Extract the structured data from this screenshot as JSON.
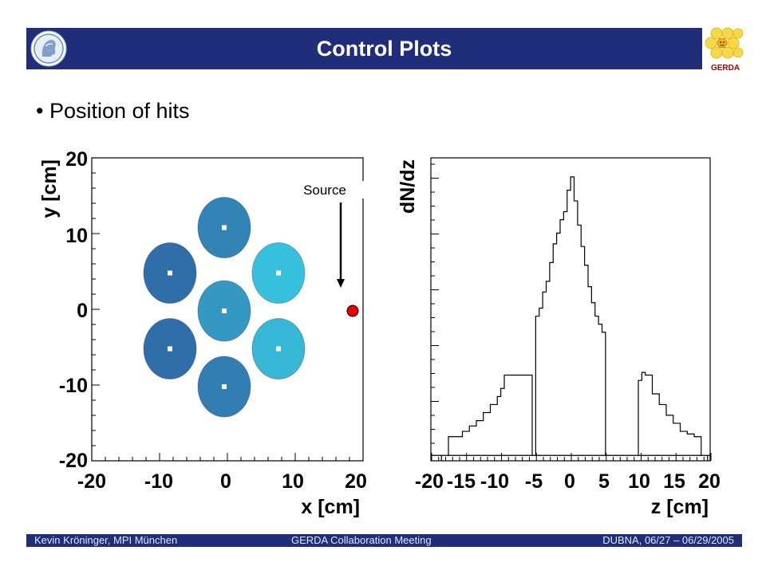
{
  "header": {
    "title": "Control Plots"
  },
  "bullet": {
    "text": "Position of hits"
  },
  "logos": {
    "right_label": "GERDA"
  },
  "footer": {
    "left": "Kevin Kröninger, MPI München",
    "center": "GERDA Collaboration Meeting",
    "right": "DUBNA, 06/27 – 06/29/2005"
  },
  "colors": {
    "bar": "#1f2d7a",
    "detector_dark": "#2f5fa0",
    "detector_light": "#38c6e0",
    "source": "#e60000"
  },
  "chart_data": [
    {
      "type": "heatmap",
      "xlabel": "x [cm]",
      "ylabel": "y [cm]",
      "xlim": [
        -20,
        20
      ],
      "ylim": [
        -20,
        20
      ],
      "xticks": [
        "-20",
        "-10",
        "0",
        "10",
        "20"
      ],
      "yticks": [
        "20",
        "10",
        "0",
        "-10",
        "-20"
      ],
      "annotation": "Source",
      "source_point": {
        "x": 18,
        "y": 0
      },
      "detectors": [
        {
          "x": 0,
          "y": 11,
          "intensity": 0.35
        },
        {
          "x": -8,
          "y": 5,
          "intensity": 0.15
        },
        {
          "x": 8,
          "y": 5,
          "intensity": 0.95
        },
        {
          "x": 0,
          "y": 0,
          "intensity": 0.55
        },
        {
          "x": -8,
          "y": -5,
          "intensity": 0.15
        },
        {
          "x": 8,
          "y": -5,
          "intensity": 0.85
        },
        {
          "x": 0,
          "y": -10,
          "intensity": 0.3
        }
      ]
    },
    {
      "type": "line",
      "xlabel": "z [cm]",
      "ylabel": "dN/dz",
      "xlim": [
        -20,
        20
      ],
      "ylim": [
        0,
        100
      ],
      "xticks": [
        "-20",
        "-15",
        "-10",
        "-5",
        "0",
        "5",
        "10",
        "15",
        "20"
      ],
      "x": [
        -18.6,
        -17.6,
        -16.6,
        -15.6,
        -14.6,
        -13.6,
        -12.6,
        -11.6,
        -10.6,
        -10.1,
        -9.6,
        -5.6,
        -5.1,
        -4.6,
        -4.1,
        -3.6,
        -3.1,
        -2.6,
        -2.1,
        -1.6,
        -1.1,
        -0.6,
        -0.1,
        0.4,
        0.9,
        1.4,
        1.9,
        2.4,
        2.9,
        3.4,
        3.9,
        4.4,
        4.9,
        5.4,
        9.6,
        10.1,
        10.6,
        11.6,
        12.6,
        13.6,
        14.6,
        15.6,
        16.6,
        17.6,
        18.6
      ],
      "values": [
        2,
        9,
        9,
        11,
        13,
        15,
        18,
        21,
        24,
        27,
        32,
        2,
        54,
        57,
        63,
        67,
        74,
        81,
        85,
        90,
        93,
        101,
        106,
        97,
        88,
        80,
        73,
        65,
        59,
        54,
        51,
        48,
        2,
        2,
        30,
        33,
        32,
        25,
        21,
        17,
        14,
        11,
        10,
        9,
        2
      ]
    }
  ]
}
